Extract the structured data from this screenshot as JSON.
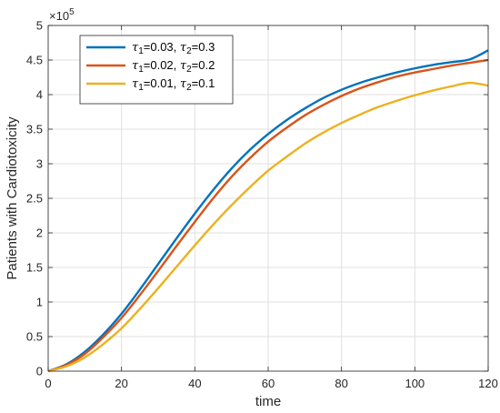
{
  "chart_data": {
    "type": "line",
    "xlabel": "time",
    "ylabel": "Patients with Cardiotoxicity",
    "xlim": [
      0,
      120
    ],
    "ylim": [
      0,
      5
    ],
    "y_multiplier_label": "×10",
    "y_multiplier_exponent": "5",
    "x_ticks": [
      0,
      20,
      40,
      60,
      80,
      100,
      120
    ],
    "y_ticks": [
      0,
      0.5,
      1,
      1.5,
      2,
      2.5,
      3,
      3.5,
      4,
      4.5,
      5
    ],
    "y_tick_labels": [
      "0",
      "0.5",
      "1",
      "1.5",
      "2",
      "2.5",
      "3",
      "3.5",
      "4",
      "4.5",
      "5"
    ],
    "grid": true,
    "legend_position": "top-left",
    "x": [
      0,
      5,
      10,
      15,
      20,
      25,
      30,
      35,
      40,
      45,
      50,
      55,
      60,
      65,
      70,
      75,
      80,
      85,
      90,
      95,
      100,
      105,
      110,
      115,
      120
    ],
    "series": [
      {
        "legend": {
          "sym1": "τ",
          "sub1": "1",
          "val1": "=0.03, ",
          "sym2": "τ",
          "sub2": "2",
          "val2": "=0.3"
        },
        "color": "#0072BD",
        "values": [
          0,
          0.1,
          0.28,
          0.53,
          0.83,
          1.18,
          1.55,
          1.92,
          2.28,
          2.62,
          2.93,
          3.2,
          3.43,
          3.63,
          3.8,
          3.95,
          4.07,
          4.17,
          4.25,
          4.32,
          4.38,
          4.43,
          4.47,
          4.51,
          4.64
        ]
      },
      {
        "legend": {
          "sym1": "τ",
          "sub1": "1",
          "val1": "=0.02, ",
          "sym2": "τ",
          "sub2": "2",
          "val2": "=0.2"
        },
        "color": "#D95319",
        "values": [
          0,
          0.09,
          0.25,
          0.49,
          0.77,
          1.1,
          1.45,
          1.81,
          2.16,
          2.5,
          2.81,
          3.08,
          3.32,
          3.52,
          3.7,
          3.85,
          3.98,
          4.09,
          4.18,
          4.26,
          4.32,
          4.37,
          4.42,
          4.46,
          4.5
        ]
      },
      {
        "legend": {
          "sym1": "τ",
          "sub1": "1",
          "val1": "=0.01, ",
          "sym2": "τ",
          "sub2": "2",
          "val2": "=0.1"
        },
        "color": "#EDB120",
        "values": [
          0,
          0.07,
          0.2,
          0.39,
          0.62,
          0.9,
          1.2,
          1.51,
          1.82,
          2.12,
          2.4,
          2.66,
          2.9,
          3.1,
          3.29,
          3.45,
          3.59,
          3.71,
          3.82,
          3.91,
          3.99,
          4.06,
          4.12,
          4.17,
          4.13
        ]
      }
    ]
  }
}
